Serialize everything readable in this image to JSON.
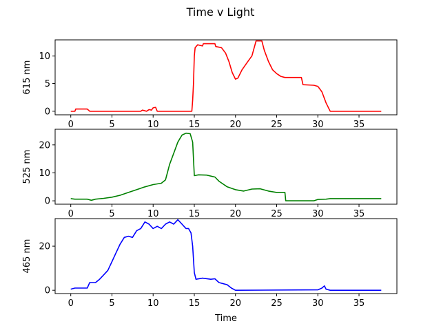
{
  "chart_data": {
    "type": "line",
    "title": "Time v Light",
    "xlabel": "Time",
    "xlim": [
      -1.9,
      39.6
    ],
    "x_ticks": [
      0,
      5,
      10,
      15,
      20,
      25,
      30,
      35
    ],
    "grid": false,
    "subplots": [
      {
        "ylabel": "615 nm",
        "color": "#ff0000",
        "ylim": [
          -0.65,
          12.9
        ],
        "y_ticks": [
          0,
          5,
          10
        ],
        "points": [
          [
            0,
            0
          ],
          [
            0.5,
            0
          ],
          [
            0.6,
            0.4
          ],
          [
            2,
            0.4
          ],
          [
            2.3,
            0
          ],
          [
            8.5,
            0
          ],
          [
            8.7,
            0.2
          ],
          [
            9.2,
            0
          ],
          [
            9.5,
            0.3
          ],
          [
            9.8,
            0.2
          ],
          [
            10,
            0.6
          ],
          [
            10.3,
            0.7
          ],
          [
            10.5,
            0
          ],
          [
            14.7,
            0
          ],
          [
            14.8,
            2
          ],
          [
            14.9,
            5
          ],
          [
            15,
            10
          ],
          [
            15.1,
            11.5
          ],
          [
            15.4,
            12
          ],
          [
            16,
            11.8
          ],
          [
            16.1,
            12.2
          ],
          [
            17.5,
            12.2
          ],
          [
            17.6,
            11.7
          ],
          [
            18.3,
            11.5
          ],
          [
            18.8,
            10.5
          ],
          [
            19.2,
            9
          ],
          [
            19.6,
            7
          ],
          [
            20,
            5.8
          ],
          [
            20.3,
            6
          ],
          [
            20.8,
            7.5
          ],
          [
            21.5,
            9
          ],
          [
            22,
            10
          ],
          [
            22.5,
            12.7
          ],
          [
            23.2,
            12.7
          ],
          [
            23.5,
            11
          ],
          [
            24,
            9
          ],
          [
            24.5,
            7.5
          ],
          [
            25,
            6.8
          ],
          [
            25.5,
            6.3
          ],
          [
            26,
            6.1
          ],
          [
            28,
            6.1
          ],
          [
            28.2,
            4.8
          ],
          [
            29.5,
            4.7
          ],
          [
            30,
            4.5
          ],
          [
            30.5,
            3.5
          ],
          [
            31,
            1.5
          ],
          [
            31.5,
            0
          ],
          [
            37.7,
            0
          ]
        ]
      },
      {
        "ylabel": "525 nm",
        "color": "#008000",
        "ylim": [
          -1.2,
          25.6
        ],
        "y_ticks": [
          0,
          10,
          20
        ],
        "points": [
          [
            0,
            0.8
          ],
          [
            0.5,
            0.6
          ],
          [
            2,
            0.6
          ],
          [
            2.5,
            0.2
          ],
          [
            3,
            0.6
          ],
          [
            4,
            0.9
          ],
          [
            5,
            1.3
          ],
          [
            6,
            2
          ],
          [
            7,
            3
          ],
          [
            8,
            4
          ],
          [
            9,
            5
          ],
          [
            10,
            5.8
          ],
          [
            11,
            6.3
          ],
          [
            11.5,
            7.5
          ],
          [
            12,
            13
          ],
          [
            12.5,
            17
          ],
          [
            13,
            21
          ],
          [
            13.5,
            23.5
          ],
          [
            14,
            24.2
          ],
          [
            14.5,
            24
          ],
          [
            14.8,
            21
          ],
          [
            15,
            9
          ],
          [
            15.5,
            9.3
          ],
          [
            16.5,
            9.2
          ],
          [
            17.5,
            8.5
          ],
          [
            18,
            7
          ],
          [
            19,
            5
          ],
          [
            20,
            4
          ],
          [
            21,
            3.5
          ],
          [
            22,
            4.2
          ],
          [
            23,
            4.3
          ],
          [
            24,
            3.5
          ],
          [
            25,
            3
          ],
          [
            26,
            3
          ],
          [
            26.1,
            0
          ],
          [
            29.5,
            0
          ],
          [
            30,
            0.5
          ],
          [
            31,
            0.6
          ],
          [
            31.5,
            0.8
          ],
          [
            37.7,
            0.8
          ]
        ]
      },
      {
        "ylabel": "465 nm",
        "color": "#0000ff",
        "ylim": [
          -1.5,
          32.5
        ],
        "y_ticks": [
          0,
          20
        ],
        "points": [
          [
            0,
            0.5
          ],
          [
            0.5,
            1
          ],
          [
            2,
            1
          ],
          [
            2.3,
            3.5
          ],
          [
            3,
            3.5
          ],
          [
            3.5,
            5
          ],
          [
            4,
            7
          ],
          [
            4.5,
            9
          ],
          [
            5,
            13
          ],
          [
            5.5,
            17
          ],
          [
            6,
            21
          ],
          [
            6.5,
            24
          ],
          [
            7,
            24.5
          ],
          [
            7.5,
            24
          ],
          [
            8,
            27
          ],
          [
            8.5,
            28
          ],
          [
            9,
            31
          ],
          [
            9.5,
            30
          ],
          [
            10,
            28
          ],
          [
            10.5,
            29
          ],
          [
            11,
            28
          ],
          [
            11.5,
            30
          ],
          [
            12,
            31
          ],
          [
            12.5,
            30
          ],
          [
            13,
            32
          ],
          [
            13.5,
            30
          ],
          [
            14,
            28
          ],
          [
            14.3,
            28
          ],
          [
            14.6,
            26
          ],
          [
            14.8,
            20
          ],
          [
            15,
            8
          ],
          [
            15.2,
            5
          ],
          [
            16,
            5.5
          ],
          [
            17,
            5
          ],
          [
            17.5,
            5.2
          ],
          [
            18,
            3.5
          ],
          [
            19,
            2.5
          ],
          [
            19.5,
            1
          ],
          [
            20,
            0
          ],
          [
            30,
            0.2
          ],
          [
            30.5,
            1
          ],
          [
            30.8,
            2
          ],
          [
            31,
            0.5
          ],
          [
            31.5,
            0
          ],
          [
            37.7,
            0
          ]
        ]
      }
    ]
  }
}
